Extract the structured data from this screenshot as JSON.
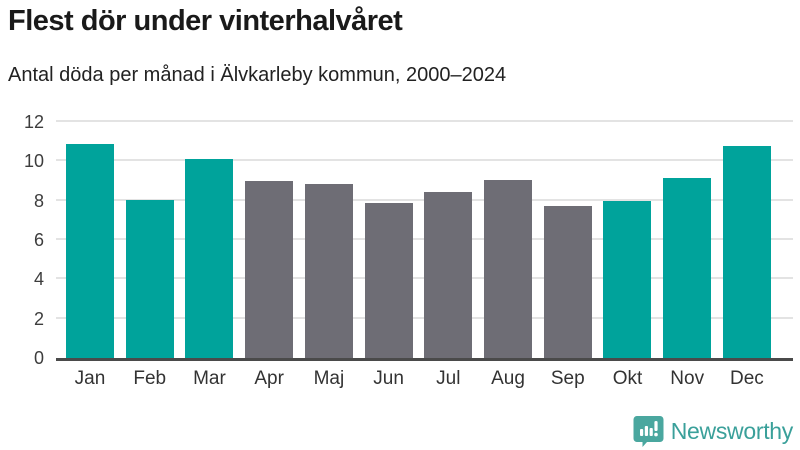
{
  "header": {
    "title": "Flest dör under vinterhalvåret",
    "subtitle": "Antal döda per månad i Älvkarleby kommun, 2000–2024"
  },
  "chart_data": {
    "type": "bar",
    "title": "Flest dör under vinterhalvåret",
    "subtitle": "Antal döda per månad i Älvkarleby kommun, 2000–2024",
    "categories": [
      "Jan",
      "Feb",
      "Mar",
      "Apr",
      "Maj",
      "Jun",
      "Jul",
      "Aug",
      "Sep",
      "Okt",
      "Nov",
      "Dec"
    ],
    "values": [
      10.9,
      8.05,
      10.1,
      9.0,
      8.85,
      7.9,
      8.45,
      9.05,
      7.75,
      8.0,
      9.15,
      10.8
    ],
    "bar_color_keys": [
      "winter",
      "winter",
      "winter",
      "summer",
      "summer",
      "summer",
      "summer",
      "summer",
      "summer",
      "winter",
      "winter",
      "winter"
    ],
    "colors": {
      "winter": "#00a39b",
      "summer": "#6e6d75"
    },
    "yticks": [
      0,
      2,
      4,
      6,
      8,
      10,
      12
    ],
    "ylim": [
      0,
      12
    ],
    "xlabel": "",
    "ylabel": "",
    "grid": "horizontal",
    "legend": "none"
  },
  "footer": {
    "brand": "Newsworthy",
    "brand_color": "#3aa09a",
    "logo_icon": "speech-bubble-bar-chart-icon"
  }
}
